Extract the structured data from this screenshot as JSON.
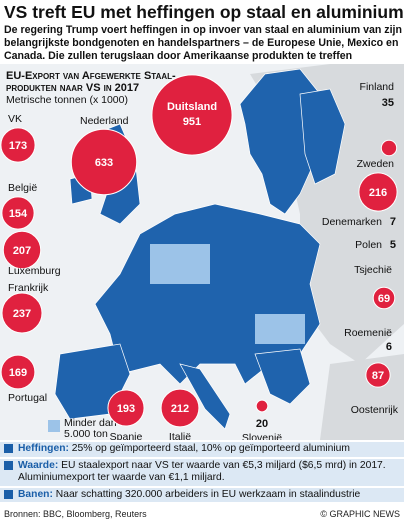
{
  "header": {
    "title": "VS treft EU met heffingen op staal en aluminium",
    "intro": [
      "De regering Trump voert heffingen in op invoer van staal en aluminium van zijn",
      "belangrijkste bondgenoten en handelspartners – de Europese Unie, Mexico en",
      "Canada. Die zullen terugslaan door Amerikaanse produkten te treffen"
    ]
  },
  "map": {
    "title": [
      "EU-Export van Afgewerkte Staal-",
      "produkten naar VS in 2017"
    ],
    "unit": "Metrische tonnen (x 1000)",
    "countries": [
      {
        "name": "VK",
        "value": 173
      },
      {
        "name": "Nederland",
        "value": 633
      },
      {
        "name": "Duitsland",
        "value": 951
      },
      {
        "name": "Finland",
        "value": 35
      },
      {
        "name": "Zweden",
        "value": 216
      },
      {
        "name": "Denemarken",
        "value": 7
      },
      {
        "name": "Polen",
        "value": 5
      },
      {
        "name": "Tsjechië",
        "value": 69
      },
      {
        "name": "Roemenië",
        "value": 6
      },
      {
        "name": "Oostenrijk",
        "value": 87
      },
      {
        "name": "Slovenië",
        "value": 20
      },
      {
        "name": "Italië",
        "value": 212
      },
      {
        "name": "Spanje",
        "value": 193
      },
      {
        "name": "Portugal",
        "value": 169
      },
      {
        "name": "Frankrijk",
        "value": 237
      },
      {
        "name": "Luxemburg",
        "value": 207
      },
      {
        "name": "België",
        "value": 154
      }
    ],
    "legend": [
      "Minder dan",
      "5.000 ton"
    ]
  },
  "notes": [
    {
      "label": "Heffingen:",
      "text": "25% op geïmporteerd staal, 10% op geïmporteerd aluminium"
    },
    {
      "label": "Waarde:",
      "text": "EU staalexport naar VS ter waarde van €5,3 miljard ($6,5 mrd) in 2017. Aluminiumexport ter waarde van €1,1 miljard."
    },
    {
      "label": "Banen:",
      "text": "Naar schatting 320.000 arbeiders in EU werkzaam in staalindustrie"
    }
  ],
  "footer": {
    "sources": "Bronnen: BBC, Bloomberg, Reuters",
    "credit": "© GRAPHIC NEWS"
  }
}
